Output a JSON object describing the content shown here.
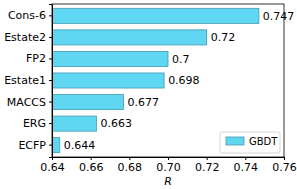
{
  "chart_data": {
    "type": "bar",
    "orientation": "horizontal",
    "categories": [
      "Cons-6",
      "Estate2",
      "FP2",
      "Estate1",
      "MACCS",
      "ERG",
      "ECFP"
    ],
    "series": [
      {
        "name": "GBDT",
        "color": "#5fd6f2",
        "values": [
          0.747,
          0.72,
          0.7,
          0.698,
          0.677,
          0.663,
          0.644
        ]
      }
    ],
    "x_label": "R",
    "xlim": [
      0.64,
      0.76
    ],
    "xticks": [
      0.64,
      0.66,
      0.68,
      {
        "value": 0.7,
        "label": "0.70"
      },
      0.72,
      0.74,
      0.76
    ],
    "data_labels": true,
    "legend": "lower right"
  }
}
